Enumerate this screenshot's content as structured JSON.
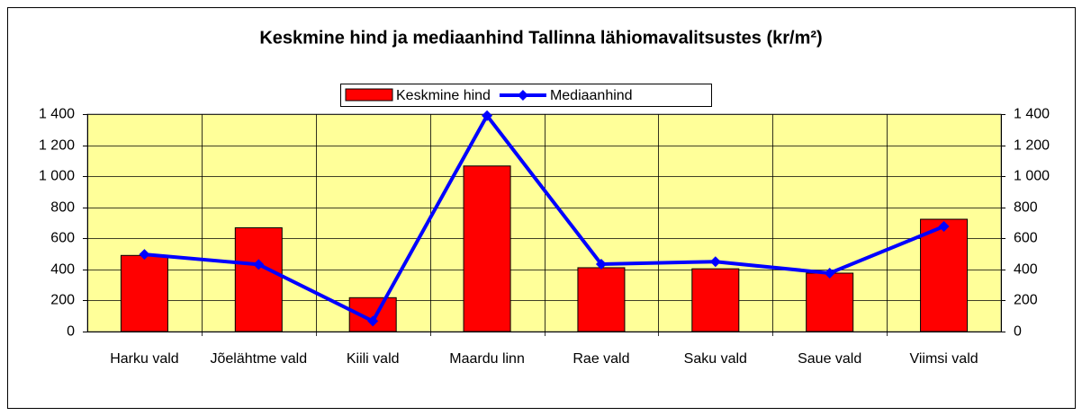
{
  "chart_data": {
    "type": "bar_line",
    "title": "Keskmine hind ja mediaanhind Tallinna lähiomavalitsustes (kr/m²)",
    "categories": [
      "Harku vald",
      "Jõelähtme vald",
      "Kiili vald",
      "Maardu linn",
      "Rae vald",
      "Saku vald",
      "Saue vald",
      "Viimsi vald"
    ],
    "series": [
      {
        "name": "Keskmine hind",
        "type": "bar",
        "color": "#ff0000",
        "values": [
          490,
          668,
          218,
          1066,
          411,
          404,
          376,
          723
        ]
      },
      {
        "name": "Mediaanhind",
        "type": "line",
        "axis": "y2",
        "color": "#0000ff",
        "values": [
          497,
          432,
          67,
          1390,
          434,
          450,
          376,
          677
        ]
      }
    ],
    "ylim": [
      0,
      1400
    ],
    "yticks": [
      0,
      200,
      400,
      600,
      800,
      {
        "value": 1000,
        "label": "1 000"
      },
      {
        "value": 1200,
        "label": "1 200"
      },
      {
        "value": 1400,
        "label": "1 400"
      }
    ],
    "y2lim": [
      0,
      1400
    ],
    "y2ticks": [
      0,
      200,
      400,
      600,
      800,
      {
        "value": 1000,
        "label": "1 000"
      },
      {
        "value": 1200,
        "label": "1 200"
      },
      {
        "value": 1400,
        "label": "1 400"
      }
    ],
    "grid": true,
    "legend": "top",
    "plot_background": "#ffff99"
  }
}
